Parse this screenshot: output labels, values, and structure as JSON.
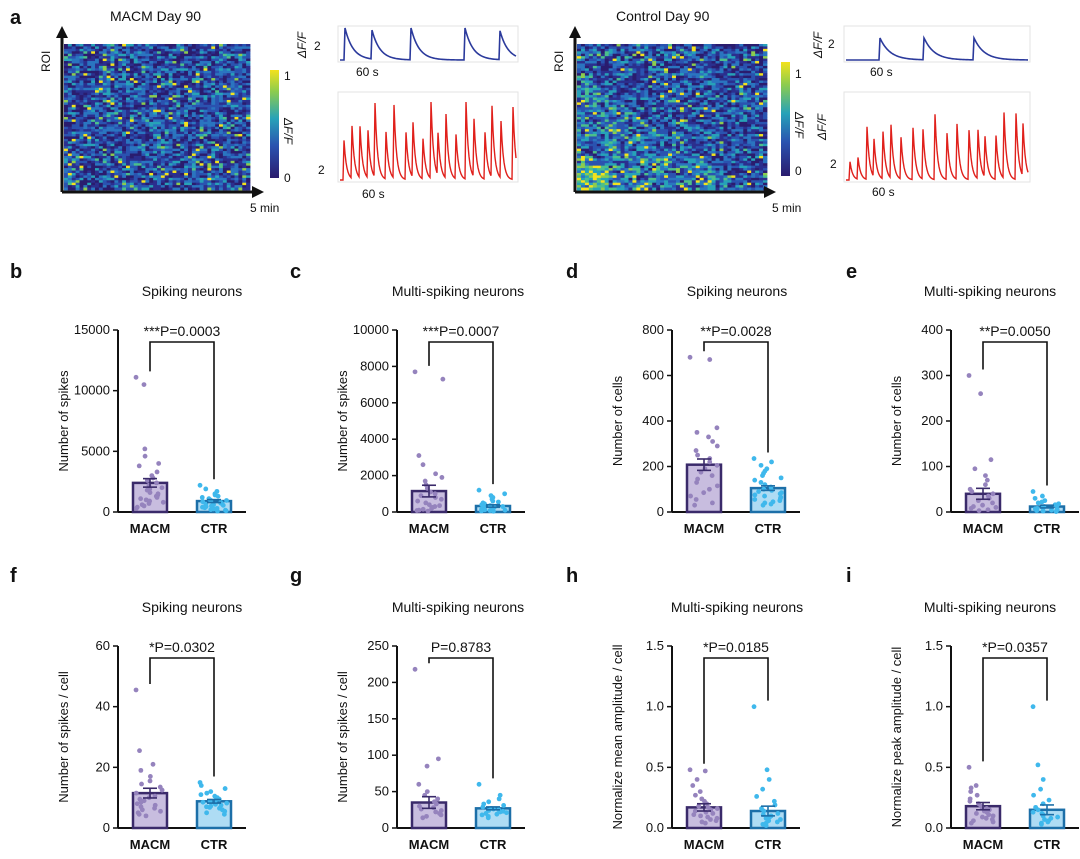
{
  "panel_a": {
    "left": {
      "label": "a",
      "title": "MACM Day 90",
      "y_axis": "ROI",
      "x_end": "5 min",
      "cbar_label": "ΔF/F",
      "cbar_max": "1",
      "cbar_min": "0",
      "trace_scale": "2",
      "trace_scale_label": "ΔF/F",
      "trace_time": "60 s",
      "trace_time2": "60 s",
      "trace_scale2": "2"
    },
    "right": {
      "title": "Control Day 90",
      "y_axis": "ROI",
      "x_end": "5 min",
      "cbar_label": "ΔF/F",
      "cbar_max": "1",
      "cbar_min": "0",
      "trace_scale": "2",
      "trace_scale_label": "ΔF/F",
      "trace_time": "60 s",
      "trace_time2": "60 s",
      "trace_scale2": "2"
    },
    "colors": {
      "macm_trace": "#2b3a9c",
      "red_trace": "#e0201b",
      "heat_low": "#2a1c6e",
      "heat_high": "#f3e21d"
    }
  },
  "chart_data": [
    {
      "panel": "b",
      "type": "bar",
      "title": "Spiking neurons",
      "ylabel": "Number of spikes",
      "categories": [
        "MACM",
        "CTR"
      ],
      "values": [
        2400,
        900
      ],
      "errors": [
        350,
        120
      ],
      "ylim": [
        0,
        15000
      ],
      "yticks": [
        "0",
        "5000",
        "10000",
        "15000"
      ],
      "stat": "***P=0.0003",
      "points": [
        [
          11100,
          10500,
          5200,
          4600,
          4000,
          3800,
          3300,
          3000,
          2800,
          2600,
          2400,
          2200,
          2000,
          1900,
          1800,
          1600,
          1500,
          1400,
          1300,
          1200,
          1100,
          1000,
          900,
          800,
          700,
          600,
          500,
          400,
          300
        ],
        [
          2200,
          1900,
          1700,
          1500,
          1400,
          1300,
          1200,
          1100,
          1000,
          950,
          900,
          850,
          800,
          750,
          700,
          650,
          600,
          550,
          500,
          450,
          400,
          350,
          300,
          250,
          200,
          150,
          100,
          80
        ]
      ]
    },
    {
      "panel": "c",
      "type": "bar",
      "title": "Multi-spiking neurons",
      "ylabel": "Number of spikes",
      "categories": [
        "MACM",
        "CTR"
      ],
      "values": [
        1150,
        330
      ],
      "errors": [
        320,
        70
      ],
      "ylim": [
        0,
        10000
      ],
      "yticks": [
        "0",
        "2000",
        "4000",
        "6000",
        "8000",
        "10000"
      ],
      "stat": "***P=0.0007",
      "points": [
        [
          7700,
          7300,
          3100,
          2600,
          2100,
          1900,
          1700,
          1500,
          1300,
          1100,
          1000,
          900,
          800,
          700,
          600,
          500,
          400,
          350,
          300,
          250,
          200,
          150,
          100,
          80,
          50
        ],
        [
          1200,
          1000,
          900,
          800,
          700,
          600,
          550,
          500,
          450,
          400,
          350,
          300,
          260,
          220,
          180,
          150,
          120,
          100,
          80,
          60,
          40
        ]
      ]
    },
    {
      "panel": "d",
      "type": "bar",
      "title": "Spiking neurons",
      "ylabel": "Number of cells",
      "categories": [
        "MACM",
        "CTR"
      ],
      "values": [
        208,
        105
      ],
      "errors": [
        25,
        10
      ],
      "ylim": [
        0,
        800
      ],
      "yticks": [
        "0",
        "200",
        "400",
        "600",
        "800"
      ],
      "stat": "**P=0.0028",
      "points": [
        [
          680,
          670,
          370,
          350,
          330,
          310,
          290,
          270,
          250,
          235,
          220,
          205,
          190,
          175,
          160,
          145,
          130,
          115,
          100,
          85,
          70,
          55,
          40,
          30
        ],
        [
          235,
          220,
          205,
          190,
          180,
          170,
          160,
          150,
          140,
          130,
          120,
          110,
          100,
          95,
          90,
          85,
          80,
          75,
          70,
          65,
          60,
          55,
          50,
          45,
          40,
          35,
          30
        ]
      ]
    },
    {
      "panel": "e",
      "type": "bar",
      "title": "Multi-spiking neurons",
      "ylabel": "Number of cells",
      "categories": [
        "MACM",
        "CTR"
      ],
      "values": [
        40,
        12
      ],
      "errors": [
        12,
        3
      ],
      "ylim": [
        0,
        400
      ],
      "yticks": [
        "0",
        "100",
        "200",
        "300",
        "400"
      ],
      "stat": "**P=0.0050",
      "points": [
        [
          300,
          260,
          115,
          95,
          80,
          70,
          60,
          50,
          45,
          40,
          35,
          30,
          25,
          20,
          15,
          12,
          10,
          8,
          5,
          3
        ],
        [
          45,
          35,
          30,
          25,
          22,
          20,
          18,
          16,
          14,
          12,
          10,
          9,
          8,
          7,
          6,
          5,
          4,
          3,
          2,
          1
        ]
      ]
    },
    {
      "panel": "f",
      "type": "bar",
      "title": "Spiking neurons",
      "ylabel": "Number of spikes / cell",
      "categories": [
        "MACM",
        "CTR"
      ],
      "values": [
        11.5,
        8.8
      ],
      "errors": [
        1.6,
        0.6
      ],
      "ylim": [
        0,
        60
      ],
      "yticks": [
        "0",
        "20",
        "40",
        "60"
      ],
      "stat": "*P=0.0302",
      "points": [
        [
          45.5,
          25.5,
          21,
          19,
          17,
          15.5,
          14.5,
          13.5,
          12.5,
          11.5,
          10.5,
          10,
          9.5,
          9,
          8.5,
          8,
          7.5,
          7,
          6.5,
          6,
          5.5,
          5,
          4.5,
          4
        ],
        [
          15,
          14,
          13,
          12,
          11.5,
          11,
          10.5,
          10,
          9.5,
          9,
          8.8,
          8.5,
          8.2,
          8,
          7.8,
          7.5,
          7.2,
          7,
          6.8,
          6.5,
          6,
          5.5,
          5,
          4.5
        ]
      ]
    },
    {
      "panel": "g",
      "type": "bar",
      "title": "Multi-spiking neurons",
      "ylabel": "Number of spikes / cell",
      "categories": [
        "MACM",
        "CTR"
      ],
      "values": [
        35,
        27
      ],
      "errors": [
        8,
        2
      ],
      "ylim": [
        0,
        250
      ],
      "yticks": [
        "0",
        "50",
        "100",
        "150",
        "200",
        "250"
      ],
      "stat": "P=0.8783",
      "points": [
        [
          218,
          95,
          85,
          60,
          50,
          45,
          40,
          36,
          33,
          30,
          28,
          26,
          24,
          22,
          20,
          18,
          16,
          14
        ],
        [
          60,
          45,
          40,
          36,
          33,
          31,
          29,
          27,
          26,
          25,
          24,
          23,
          22,
          21,
          20,
          19,
          18,
          16,
          14
        ]
      ]
    },
    {
      "panel": "h",
      "type": "bar",
      "title": "Multi-spiking neurons",
      "ylabel": "Normalize mean amplitude / cell",
      "categories": [
        "MACM",
        "CTR"
      ],
      "values": [
        0.17,
        0.14
      ],
      "errors": [
        0.03,
        0.04
      ],
      "ylim": [
        0,
        1.5
      ],
      "yticks": [
        "0.0",
        "0.5",
        "1.0",
        "1.5"
      ],
      "stat": "*P=0.0185",
      "points": [
        [
          0.48,
          0.47,
          0.4,
          0.35,
          0.3,
          0.27,
          0.24,
          0.22,
          0.2,
          0.18,
          0.17,
          0.16,
          0.15,
          0.14,
          0.13,
          0.12,
          0.11,
          0.1,
          0.09,
          0.08,
          0.07,
          0.06,
          0.05,
          0.04
        ],
        [
          1.0,
          0.48,
          0.4,
          0.32,
          0.26,
          0.22,
          0.19,
          0.16,
          0.14,
          0.12,
          0.11,
          0.1,
          0.09,
          0.08,
          0.07,
          0.06,
          0.05,
          0.04,
          0.03,
          0.02
        ]
      ]
    },
    {
      "panel": "i",
      "type": "bar",
      "title": "Multi-spiking neurons",
      "ylabel": "Normalize peak amplitude / cell",
      "categories": [
        "MACM",
        "CTR"
      ],
      "values": [
        0.18,
        0.15
      ],
      "errors": [
        0.03,
        0.04
      ],
      "ylim": [
        0,
        1.5
      ],
      "yticks": [
        "0.0",
        "0.5",
        "1.0",
        "1.5"
      ],
      "stat": "*P=0.0357",
      "points": [
        [
          0.5,
          0.35,
          0.33,
          0.3,
          0.27,
          0.24,
          0.22,
          0.2,
          0.18,
          0.17,
          0.16,
          0.15,
          0.14,
          0.13,
          0.12,
          0.11,
          0.1,
          0.09,
          0.08,
          0.07,
          0.06,
          0.05,
          0.04
        ],
        [
          1.0,
          0.52,
          0.4,
          0.32,
          0.27,
          0.23,
          0.2,
          0.17,
          0.15,
          0.13,
          0.12,
          0.11,
          0.1,
          0.09,
          0.08,
          0.07,
          0.06,
          0.05,
          0.04,
          0.03
        ]
      ]
    }
  ],
  "bar_colors": {
    "macm_fill": "#c8bddf",
    "macm_dot": "#9583bd",
    "macm_edge": "#3a2a6a",
    "ctr_fill": "#aedcf4",
    "ctr_dot": "#3fb8ec",
    "ctr_edge": "#1c6fa8"
  }
}
